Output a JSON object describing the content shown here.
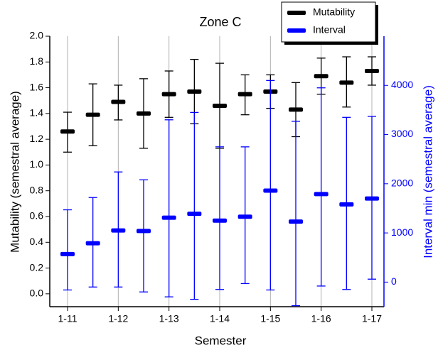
{
  "chart_data": {
    "type": "errorbar",
    "title": "Zone C",
    "x_label": "Semester",
    "y_label": "Mutability (semestral average)",
    "y2_label": "Interval min (semestral average)",
    "categories": [
      "1-11",
      null,
      "1-12",
      null,
      "1-13",
      null,
      "1-14",
      null,
      "1-15",
      null,
      "1-16",
      null,
      "1-17"
    ],
    "ylim": [
      -0.1,
      2.0
    ],
    "yticks": [
      {
        "value": 0,
        "label": "0.0"
      },
      0.2,
      0.4,
      0.6,
      0.8,
      {
        "value": 1,
        "label": "1.0"
      },
      1.2,
      1.4,
      1.6,
      1.8,
      {
        "value": 2,
        "label": "2.0"
      }
    ],
    "y2lim": [
      -500,
      5000
    ],
    "y2ticks": [
      0,
      1000,
      2000,
      3000,
      4000
    ],
    "grid": true,
    "legend": "top-right",
    "series": [
      {
        "name": "Mutability",
        "color": "#000000",
        "axis": "y",
        "values": [
          1.26,
          1.39,
          1.49,
          1.4,
          1.55,
          1.57,
          1.46,
          1.55,
          1.57,
          1.43,
          1.69,
          1.64,
          1.73
        ],
        "low": [
          1.1,
          1.15,
          1.35,
          1.13,
          1.37,
          1.32,
          1.13,
          1.39,
          1.44,
          1.22,
          1.55,
          1.45,
          1.62
        ],
        "high": [
          1.41,
          1.63,
          1.62,
          1.67,
          1.73,
          1.82,
          1.79,
          1.7,
          1.7,
          1.64,
          1.83,
          1.84,
          1.84
        ]
      },
      {
        "name": "Interval",
        "color": "#0000ff",
        "axis": "y2",
        "values": [
          570,
          790,
          1050,
          1040,
          1310,
          1390,
          1250,
          1330,
          1860,
          1230,
          1790,
          1580,
          1700
        ],
        "low": [
          -160,
          -100,
          -100,
          -200,
          -300,
          -350,
          -150,
          -30,
          -160,
          -480,
          -80,
          -150,
          60
        ],
        "high": [
          1470,
          1720,
          2240,
          2080,
          3300,
          3450,
          2750,
          2750,
          4100,
          3270,
          3950,
          3350,
          3370
        ]
      }
    ]
  }
}
